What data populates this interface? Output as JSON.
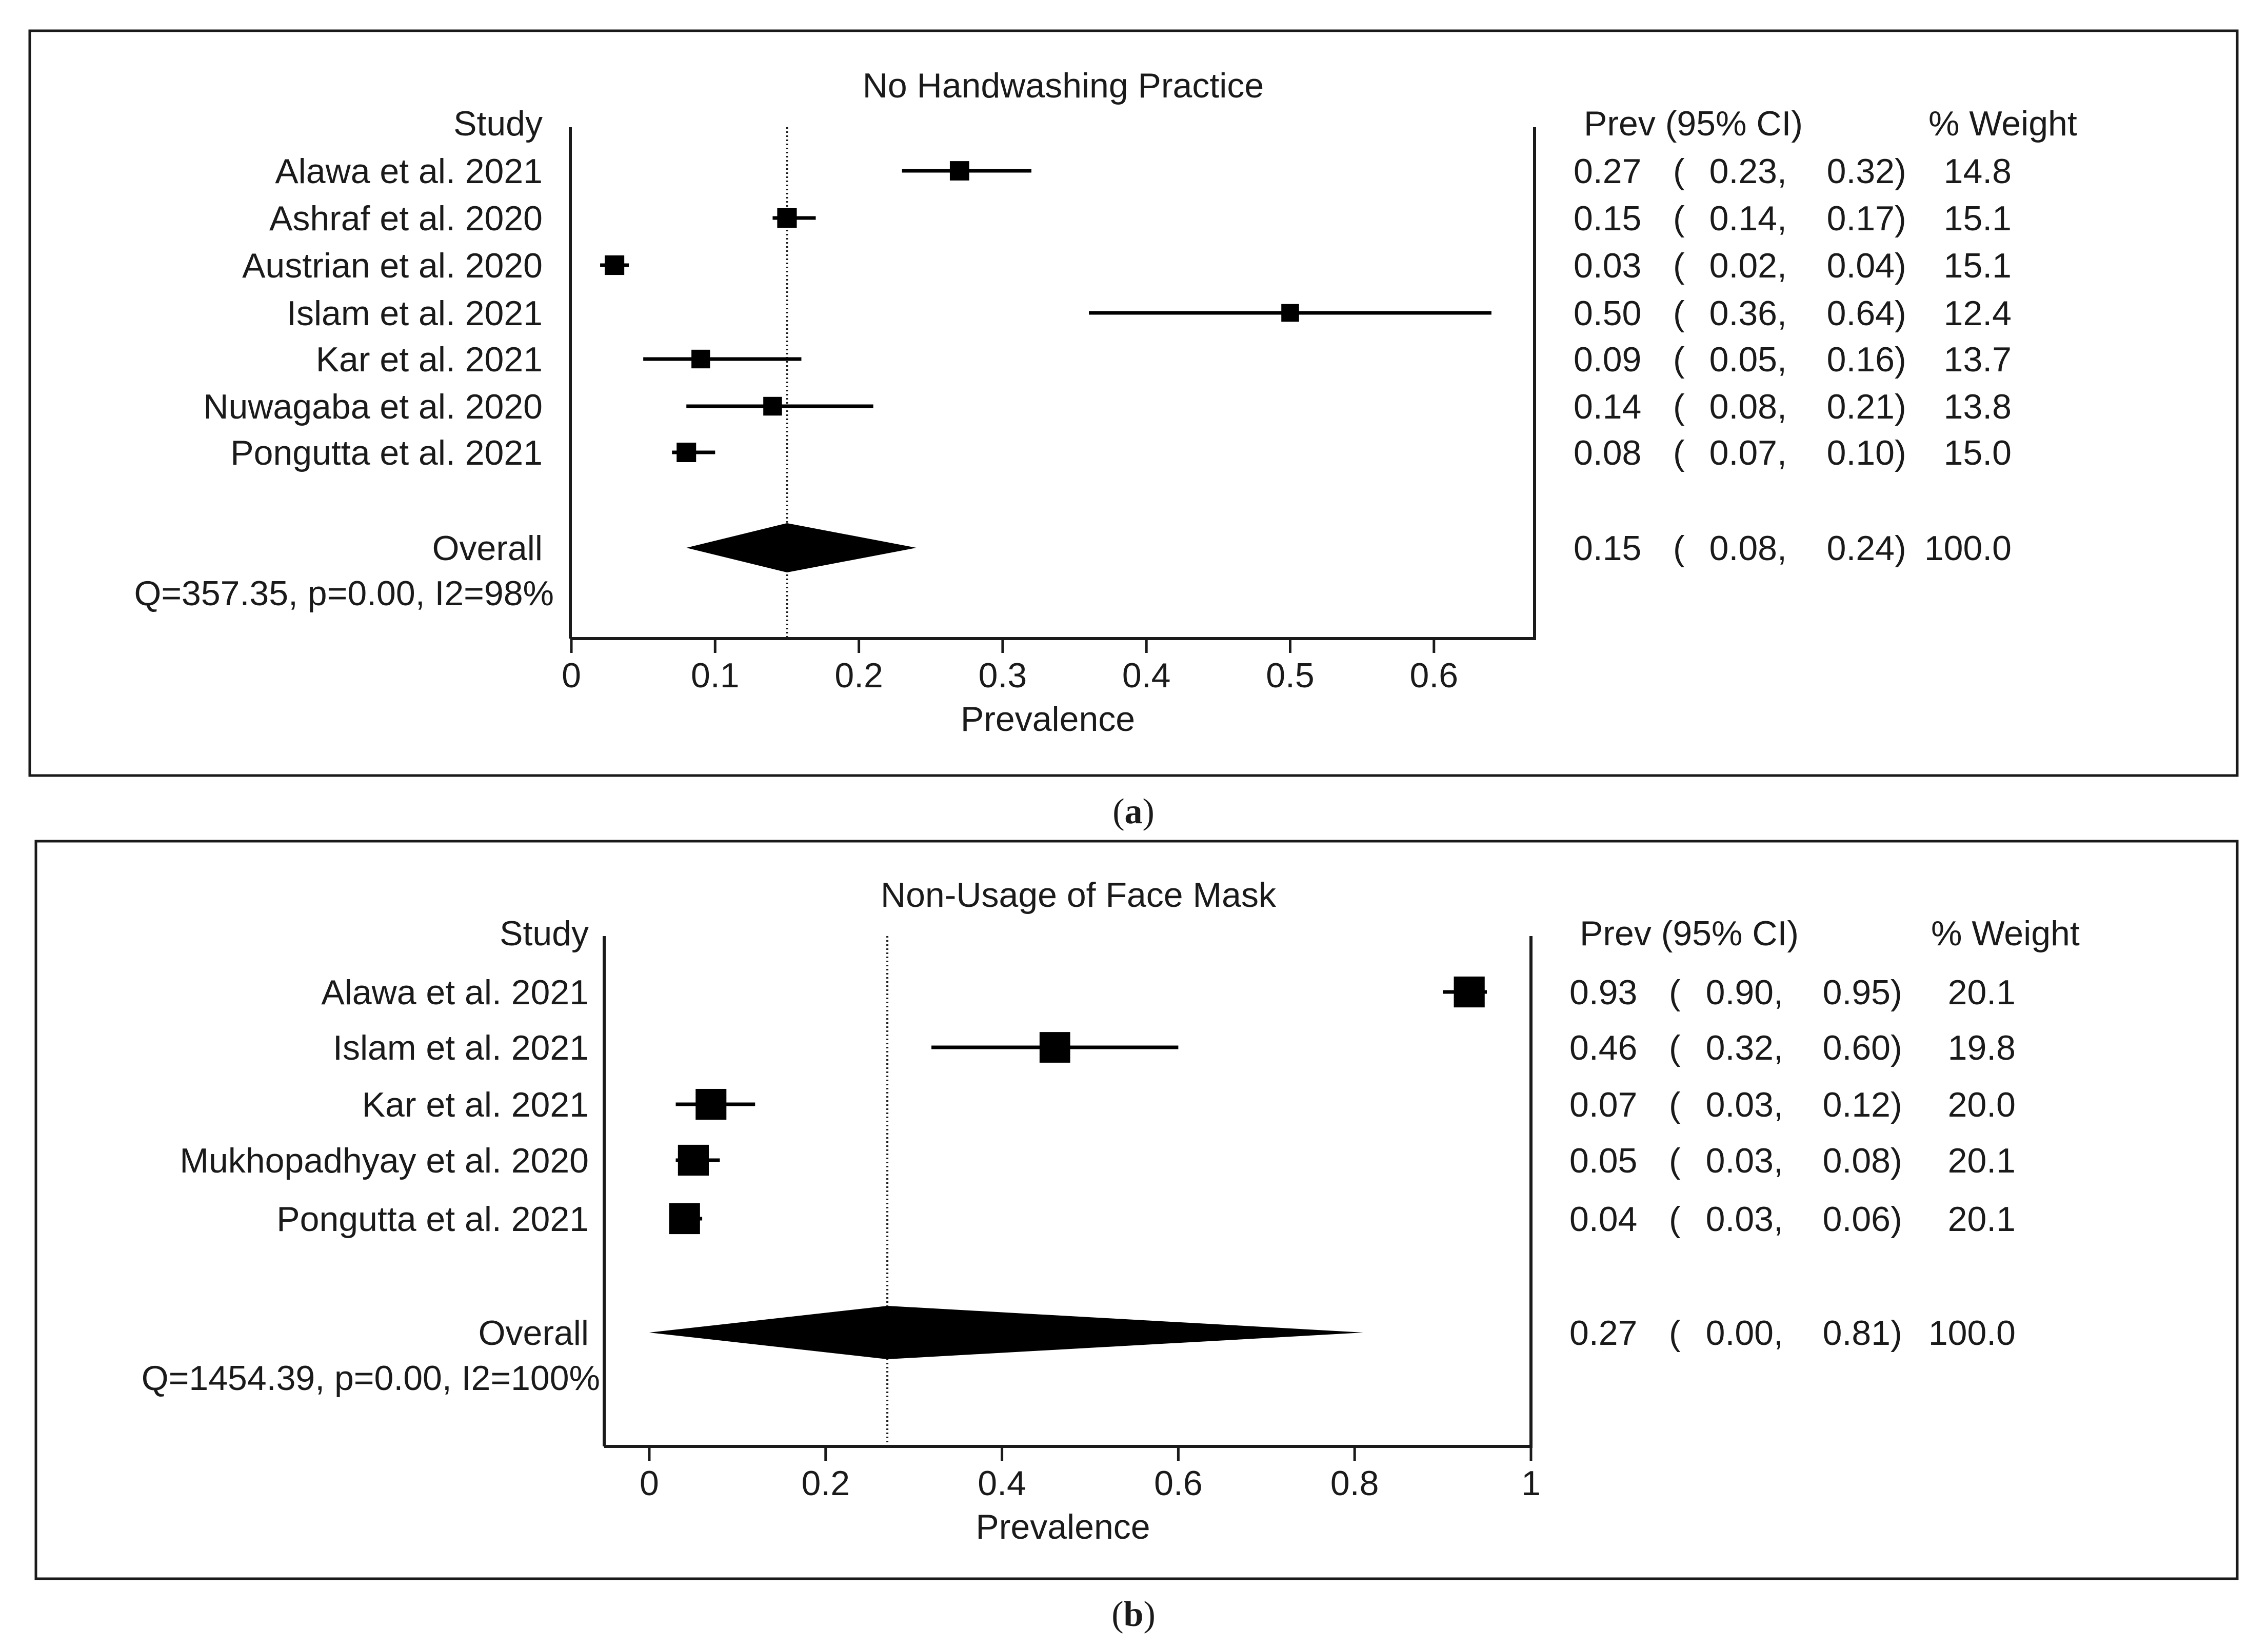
{
  "chart_data": [
    {
      "type": "forest",
      "panel_label": "a",
      "title": "No Handwashing Practice",
      "xlabel": "Prevalence",
      "col_study_header": "Study",
      "col_prev_header": "Prev (95% CI)",
      "col_weight_header": "% Weight",
      "xlim": [
        0,
        0.67
      ],
      "xticks": [
        0,
        0.1,
        0.2,
        0.3,
        0.4,
        0.5,
        0.6
      ],
      "xtick_labels": [
        "0",
        "0.1",
        "0.2",
        "0.3",
        "0.4",
        "0.5",
        "0.6"
      ],
      "studies": [
        {
          "label": "Alawa et al. 2021",
          "prev": 0.27,
          "lo": 0.23,
          "hi": 0.32,
          "weight": 14.8,
          "prev_text": "0.27",
          "lo_text": "0.23",
          "hi_text": "0.32",
          "weight_text": "14.8"
        },
        {
          "label": "Ashraf et al. 2020",
          "prev": 0.15,
          "lo": 0.14,
          "hi": 0.17,
          "weight": 15.1,
          "prev_text": "0.15",
          "lo_text": "0.14",
          "hi_text": "0.17",
          "weight_text": "15.1"
        },
        {
          "label": "Austrian et al. 2020",
          "prev": 0.03,
          "lo": 0.02,
          "hi": 0.04,
          "weight": 15.1,
          "prev_text": "0.03",
          "lo_text": "0.02",
          "hi_text": "0.04",
          "weight_text": "15.1"
        },
        {
          "label": "Islam et al. 2021",
          "prev": 0.5,
          "lo": 0.36,
          "hi": 0.64,
          "weight": 12.4,
          "prev_text": "0.50",
          "lo_text": "0.36",
          "hi_text": "0.64",
          "weight_text": "12.4"
        },
        {
          "label": "Kar et al. 2021",
          "prev": 0.09,
          "lo": 0.05,
          "hi": 0.16,
          "weight": 13.7,
          "prev_text": "0.09",
          "lo_text": "0.05",
          "hi_text": "0.16",
          "weight_text": "13.7"
        },
        {
          "label": "Nuwagaba et al. 2020",
          "prev": 0.14,
          "lo": 0.08,
          "hi": 0.21,
          "weight": 13.8,
          "prev_text": "0.14",
          "lo_text": "0.08",
          "hi_text": "0.21",
          "weight_text": "13.8"
        },
        {
          "label": "Pongutta et al. 2021",
          "prev": 0.08,
          "lo": 0.07,
          "hi": 0.1,
          "weight": 15.0,
          "prev_text": "0.08",
          "lo_text": "0.07",
          "hi_text": "0.10",
          "weight_text": "15.0"
        }
      ],
      "overall": {
        "label": "Overall",
        "prev": 0.15,
        "lo": 0.08,
        "hi": 0.24,
        "weight": 100.0,
        "prev_text": "0.15",
        "lo_text": "0.08",
        "hi_text": "0.24",
        "weight_text": "100.0"
      },
      "heterogeneity": "Q=357.35, p=0.00, I2=98%"
    },
    {
      "type": "forest",
      "panel_label": "b",
      "title": "Non-Usage of Face Mask",
      "xlabel": "Prevalence",
      "col_study_header": "Study",
      "col_prev_header": "Prev (95% CI)",
      "col_weight_header": "% Weight",
      "xlim": [
        -0.05,
        1.0
      ],
      "xticks": [
        0,
        0.2,
        0.4,
        0.6,
        0.8,
        1.0
      ],
      "xtick_labels": [
        "0",
        "0.2",
        "0.4",
        "0.6",
        "0.8",
        "1"
      ],
      "studies": [
        {
          "label": "Alawa et al. 2021",
          "prev": 0.93,
          "lo": 0.9,
          "hi": 0.95,
          "weight": 20.1,
          "prev_text": "0.93",
          "lo_text": "0.90",
          "hi_text": "0.95",
          "weight_text": "20.1"
        },
        {
          "label": "Islam et al. 2021",
          "prev": 0.46,
          "lo": 0.32,
          "hi": 0.6,
          "weight": 19.8,
          "prev_text": "0.46",
          "lo_text": "0.32",
          "hi_text": "0.60",
          "weight_text": "19.8"
        },
        {
          "label": "Kar et al. 2021",
          "prev": 0.07,
          "lo": 0.03,
          "hi": 0.12,
          "weight": 20.0,
          "prev_text": "0.07",
          "lo_text": "0.03",
          "hi_text": "0.12",
          "weight_text": "20.0"
        },
        {
          "label": "Mukhopadhyay et al. 2020",
          "prev": 0.05,
          "lo": 0.03,
          "hi": 0.08,
          "weight": 20.1,
          "prev_text": "0.05",
          "lo_text": "0.03",
          "hi_text": "0.08",
          "weight_text": "20.1"
        },
        {
          "label": "Pongutta et al. 2021",
          "prev": 0.04,
          "lo": 0.03,
          "hi": 0.06,
          "weight": 20.1,
          "prev_text": "0.04",
          "lo_text": "0.03",
          "hi_text": "0.06",
          "weight_text": "20.1"
        }
      ],
      "overall": {
        "label": "Overall",
        "prev": 0.27,
        "lo": 0.0,
        "hi": 0.81,
        "weight": 100.0,
        "prev_text": "0.27",
        "lo_text": "0.00",
        "hi_text": "0.81",
        "weight_text": "100.0"
      },
      "heterogeneity": "Q=1454.39, p=0.00, I2=100%"
    }
  ]
}
